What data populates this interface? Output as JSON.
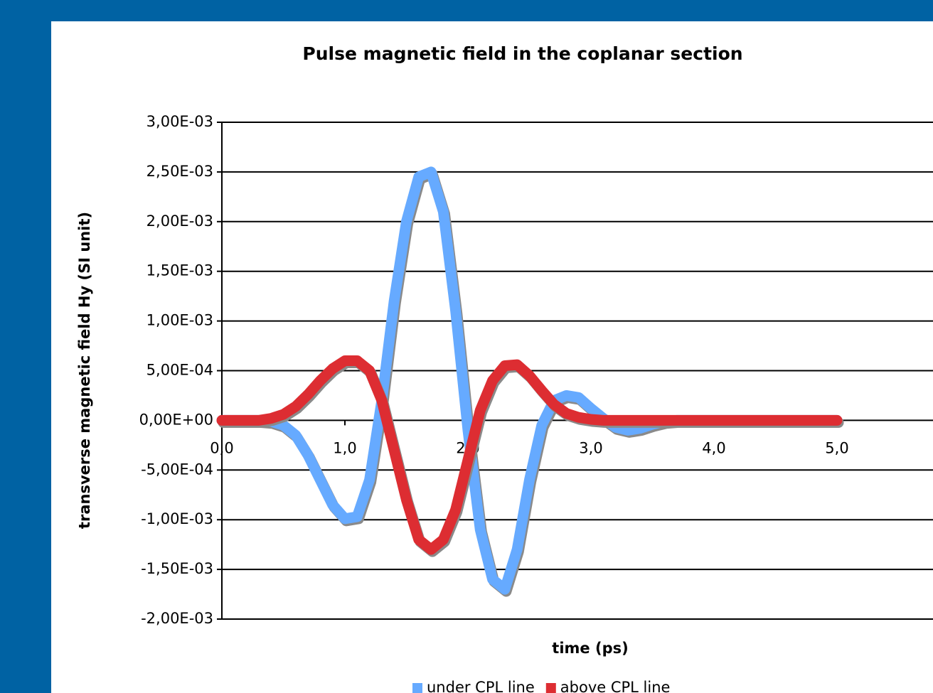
{
  "chart_data": {
    "type": "line",
    "title": "Pulse magnetic field in the coplanar section",
    "x_label": "time (ps)",
    "y_label": "transverse magnetic field Hy (SI unit)",
    "x": [
      0,
      0.1,
      0.2,
      0.3,
      0.4,
      0.5,
      0.6,
      0.7,
      0.8,
      0.9,
      1.0,
      1.1,
      1.2,
      1.3,
      1.4,
      1.5,
      1.6,
      1.7,
      1.8,
      1.9,
      2.0,
      2.1,
      2.2,
      2.3,
      2.4,
      2.5,
      2.6,
      2.7,
      2.8,
      2.9,
      3.0,
      3.1,
      3.2,
      3.3,
      3.4,
      3.5,
      3.6,
      3.7,
      3.8,
      3.9,
      4.0,
      4.1,
      4.2,
      4.3,
      4.4,
      4.5,
      4.6,
      4.7,
      4.8,
      4.9,
      5.0
    ],
    "series": [
      {
        "name": "under CPL line",
        "color": "#66aaff",
        "values": [
          0,
          0,
          0,
          0,
          -1e-05,
          -5e-05,
          -0.00015,
          -0.00035,
          -0.0006,
          -0.00085,
          -0.00099,
          -0.00097,
          -0.0006,
          0.0002,
          0.0012,
          0.002,
          0.00245,
          0.0025,
          0.0021,
          0.0011,
          -0.0001,
          -0.0011,
          -0.0016,
          -0.0017,
          -0.0013,
          -0.0006,
          -5e-05,
          0.0002,
          0.00025,
          0.00023,
          0.00012,
          2e-05,
          -7e-05,
          -0.0001,
          -8e-05,
          -4e-05,
          -1e-05,
          0,
          0,
          0,
          0,
          0,
          0,
          0,
          0,
          0,
          0,
          0,
          0,
          0,
          0
        ]
      },
      {
        "name": "above CPL line",
        "color": "#dd2d32",
        "values": [
          0,
          0,
          0,
          0,
          2e-05,
          6e-05,
          0.00014,
          0.00026,
          0.0004,
          0.00052,
          0.0006,
          0.0006,
          0.0005,
          0.0002,
          -0.0003,
          -0.0008,
          -0.0012,
          -0.0013,
          -0.0012,
          -0.0009,
          -0.0004,
          0.0001,
          0.0004,
          0.00055,
          0.00056,
          0.00045,
          0.0003,
          0.00016,
          7e-05,
          3e-05,
          1e-05,
          0,
          0,
          0,
          0,
          0,
          0,
          0,
          0,
          0,
          0,
          0,
          0,
          0,
          0,
          0,
          0,
          0,
          0,
          0,
          0
        ]
      }
    ],
    "xlim": [
      0,
      6
    ],
    "ylim": [
      -0.002,
      0.003
    ],
    "xticks": [
      {
        "value": 0,
        "label": "0,0"
      },
      {
        "value": 1,
        "label": "1,0"
      },
      {
        "value": 2,
        "label": "2,0"
      },
      {
        "value": 3,
        "label": "3,0"
      },
      {
        "value": 4,
        "label": "4,0"
      },
      {
        "value": 5,
        "label": "5,0"
      }
    ],
    "yticks": [
      {
        "value": -0.002,
        "label": "-2,00E-03"
      },
      {
        "value": -0.0015,
        "label": "-1,50E-03"
      },
      {
        "value": -0.001,
        "label": "-1,00E-03"
      },
      {
        "value": -0.0005,
        "label": "-5,00E-04"
      },
      {
        "value": 0,
        "label": "0,00E+00"
      },
      {
        "value": 0.0005,
        "label": "5,00E-04"
      },
      {
        "value": 0.001,
        "label": "1,00E-03"
      },
      {
        "value": 0.0015,
        "label": "1,50E-03"
      },
      {
        "value": 0.002,
        "label": "2,00E-03"
      },
      {
        "value": 0.0025,
        "label": "2,50E-03"
      },
      {
        "value": 0.003,
        "label": "3,00E-03"
      }
    ],
    "grid": true,
    "legend": "bottom"
  }
}
